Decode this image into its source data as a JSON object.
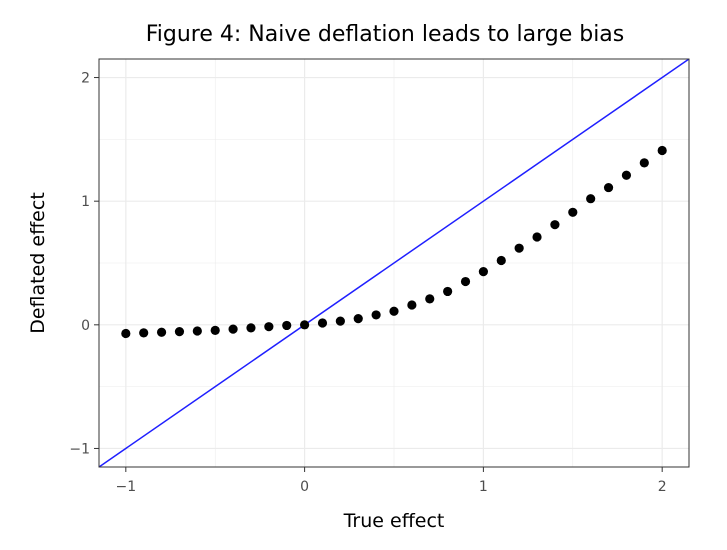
{
  "chart_data": {
    "type": "scatter",
    "title": "Figure 4: Naive deflation leads to large bias",
    "xlabel": "True effect",
    "ylabel": "Deflated effect",
    "xlim": [
      -1.15,
      2.15
    ],
    "ylim": [
      -1.15,
      2.15
    ],
    "x_ticks": [
      -1,
      0,
      1,
      2
    ],
    "y_ticks": [
      -1,
      0,
      1,
      2
    ],
    "x_tick_labels": [
      "−1",
      "0",
      "1",
      "2"
    ],
    "y_tick_labels": [
      "−1",
      "0",
      "1",
      "2"
    ],
    "grid": true,
    "legend": "none",
    "colors": {
      "points": "#000000",
      "reference_line": "#1f1fff",
      "grid": "#ebebeb",
      "border": "#333333"
    },
    "reference_line": {
      "slope": 1,
      "intercept": 0
    },
    "series": [
      {
        "x": [
          -1.0,
          -0.9,
          -0.8,
          -0.7,
          -0.6,
          -0.5,
          -0.4,
          -0.3,
          -0.2,
          -0.1,
          0.0,
          0.1,
          0.2,
          0.3,
          0.4,
          0.5,
          0.6,
          0.7,
          0.8,
          0.9,
          1.0,
          1.1,
          1.2,
          1.3,
          1.4,
          1.5,
          1.6,
          1.7,
          1.8,
          1.9,
          2.0
        ],
        "y": [
          -0.07,
          -0.065,
          -0.06,
          -0.055,
          -0.05,
          -0.045,
          -0.035,
          -0.025,
          -0.015,
          -0.005,
          0.0,
          0.015,
          0.03,
          0.05,
          0.08,
          0.11,
          0.16,
          0.21,
          0.27,
          0.35,
          0.43,
          0.52,
          0.62,
          0.71,
          0.81,
          0.91,
          1.02,
          1.11,
          1.21,
          1.31,
          1.41
        ]
      }
    ]
  }
}
